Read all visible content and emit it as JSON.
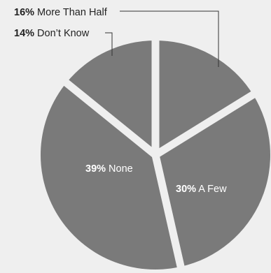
{
  "chart_data": {
    "type": "pie",
    "slices": [
      {
        "label": "More Than Half",
        "value": 16,
        "pct_text": "16%",
        "color": "#7a7a7a",
        "label_color": "#222222"
      },
      {
        "label": "A Few",
        "value": 30,
        "pct_text": "30%",
        "color": "#7a7a7a",
        "label_color": "#ffffff"
      },
      {
        "label": "None",
        "value": 39,
        "pct_text": "39%",
        "color": "#7a7a7a",
        "label_color": "#ffffff"
      },
      {
        "label": "Don’t Know",
        "value": 14,
        "pct_text": "14%",
        "color": "#7a7a7a",
        "label_color": "#222222"
      }
    ],
    "start_angle": "top",
    "direction": "clockwise",
    "separator_color": "#efefef",
    "legend": "none"
  }
}
